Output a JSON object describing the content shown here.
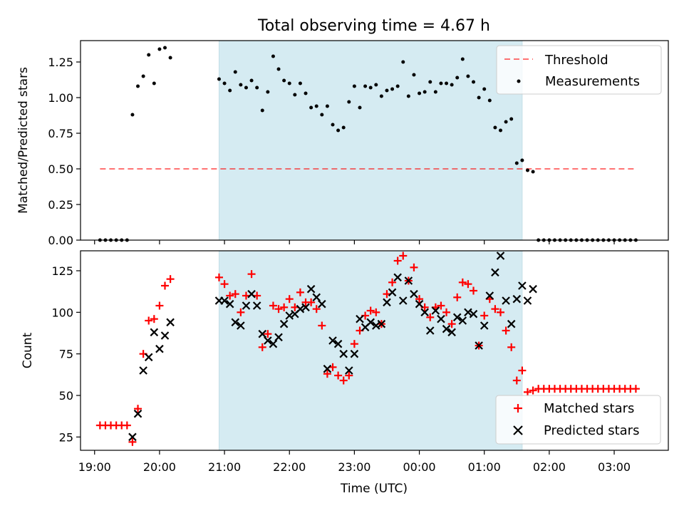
{
  "figure": {
    "title": "Total observing time = 4.67 h"
  },
  "colors": {
    "band": "#add8e6",
    "threshold": "#ff0000",
    "measurements": "#000000",
    "matched": "#ff0000",
    "predicted": "#000000"
  },
  "chart_data": [
    {
      "type": "scatter",
      "panel": "top",
      "title": "Total observing time = 4.67 h",
      "xlabel": "",
      "ylabel": "Matched/Predicted stars",
      "x_axis": "time (UTC)",
      "xlim": [
        "18:47",
        "03:50"
      ],
      "ylim": [
        0,
        1.4
      ],
      "yticks": [
        "0.00",
        "0.25",
        "0.50",
        "0.75",
        "1.00",
        "1.25"
      ],
      "legend_position": "top-right",
      "observing_window": [
        "20:55",
        "01:35"
      ],
      "series": [
        {
          "name": "Threshold",
          "style": "dashed-line",
          "points": [
            [
              "19:05",
              0.5
            ],
            [
              "03:20",
              0.5
            ]
          ]
        },
        {
          "name": "Measurements",
          "style": "dots",
          "points": [
            [
              "19:05",
              0.0
            ],
            [
              "19:10",
              0.0
            ],
            [
              "19:15",
              0.0
            ],
            [
              "19:20",
              0.0
            ],
            [
              "19:25",
              0.0
            ],
            [
              "19:30",
              0.0
            ],
            [
              "19:35",
              0.88
            ],
            [
              "19:40",
              1.08
            ],
            [
              "19:45",
              1.15
            ],
            [
              "19:50",
              1.3
            ],
            [
              "19:55",
              1.1
            ],
            [
              "20:00",
              1.34
            ],
            [
              "20:05",
              1.35
            ],
            [
              "20:10",
              1.28
            ],
            [
              "20:55",
              1.13
            ],
            [
              "21:00",
              1.1
            ],
            [
              "21:05",
              1.05
            ],
            [
              "21:10",
              1.18
            ],
            [
              "21:15",
              1.09
            ],
            [
              "21:20",
              1.07
            ],
            [
              "21:25",
              1.12
            ],
            [
              "21:30",
              1.07
            ],
            [
              "21:35",
              0.91
            ],
            [
              "21:40",
              1.04
            ],
            [
              "21:45",
              1.29
            ],
            [
              "21:50",
              1.2
            ],
            [
              "21:55",
              1.12
            ],
            [
              "22:00",
              1.1
            ],
            [
              "22:05",
              1.02
            ],
            [
              "22:10",
              1.1
            ],
            [
              "22:15",
              1.03
            ],
            [
              "22:20",
              0.93
            ],
            [
              "22:25",
              0.94
            ],
            [
              "22:30",
              0.88
            ],
            [
              "22:35",
              0.94
            ],
            [
              "22:40",
              0.81
            ],
            [
              "22:45",
              0.77
            ],
            [
              "22:50",
              0.79
            ],
            [
              "22:55",
              0.97
            ],
            [
              "23:00",
              1.08
            ],
            [
              "23:05",
              0.93
            ],
            [
              "23:10",
              1.08
            ],
            [
              "23:15",
              1.07
            ],
            [
              "23:20",
              1.09
            ],
            [
              "23:25",
              1.01
            ],
            [
              "23:30",
              1.05
            ],
            [
              "23:35",
              1.06
            ],
            [
              "23:40",
              1.08
            ],
            [
              "23:45",
              1.25
            ],
            [
              "23:50",
              1.01
            ],
            [
              "23:55",
              1.16
            ],
            [
              "00:00",
              1.03
            ],
            [
              "00:05",
              1.04
            ],
            [
              "00:10",
              1.11
            ],
            [
              "00:15",
              1.04
            ],
            [
              "00:20",
              1.1
            ],
            [
              "00:25",
              1.1
            ],
            [
              "00:30",
              1.09
            ],
            [
              "00:35",
              1.14
            ],
            [
              "00:40",
              1.27
            ],
            [
              "00:45",
              1.15
            ],
            [
              "00:50",
              1.11
            ],
            [
              "00:55",
              1.0
            ],
            [
              "01:00",
              1.06
            ],
            [
              "01:05",
              0.98
            ],
            [
              "01:10",
              0.79
            ],
            [
              "01:15",
              0.77
            ],
            [
              "01:20",
              0.83
            ],
            [
              "01:25",
              0.85
            ],
            [
              "01:30",
              0.54
            ],
            [
              "01:35",
              0.56
            ],
            [
              "01:40",
              0.49
            ],
            [
              "01:45",
              0.48
            ],
            [
              "01:50",
              0.0
            ],
            [
              "01:55",
              0.0
            ],
            [
              "02:00",
              0.0
            ],
            [
              "02:05",
              0.0
            ],
            [
              "02:10",
              0.0
            ],
            [
              "02:15",
              0.0
            ],
            [
              "02:20",
              0.0
            ],
            [
              "02:25",
              0.0
            ],
            [
              "02:30",
              0.0
            ],
            [
              "02:35",
              0.0
            ],
            [
              "02:40",
              0.0
            ],
            [
              "02:45",
              0.0
            ],
            [
              "02:50",
              0.0
            ],
            [
              "02:55",
              0.0
            ],
            [
              "03:00",
              0.0
            ],
            [
              "03:05",
              0.0
            ],
            [
              "03:10",
              0.0
            ],
            [
              "03:15",
              0.0
            ],
            [
              "03:20",
              0.0
            ]
          ]
        }
      ]
    },
    {
      "type": "scatter",
      "panel": "bottom",
      "xlabel": "Time (UTC)",
      "ylabel": "Count",
      "xlim": [
        "18:47",
        "03:50"
      ],
      "ylim": [
        17,
        137
      ],
      "xticks": [
        "19:00",
        "20:00",
        "21:00",
        "22:00",
        "23:00",
        "00:00",
        "01:00",
        "02:00",
        "03:00"
      ],
      "yticks": [
        "25",
        "50",
        "75",
        "100",
        "125"
      ],
      "legend_position": "bottom-right",
      "observing_window": [
        "20:55",
        "01:35"
      ],
      "series": [
        {
          "name": "Matched stars",
          "marker": "+",
          "points": [
            [
              "19:05",
              32
            ],
            [
              "19:10",
              32
            ],
            [
              "19:15",
              32
            ],
            [
              "19:20",
              32
            ],
            [
              "19:25",
              32
            ],
            [
              "19:30",
              32
            ],
            [
              "19:35",
              22
            ],
            [
              "19:40",
              42
            ],
            [
              "19:45",
              75
            ],
            [
              "19:50",
              95
            ],
            [
              "19:55",
              96
            ],
            [
              "20:00",
              104
            ],
            [
              "20:05",
              116
            ],
            [
              "20:10",
              120
            ],
            [
              "20:55",
              121
            ],
            [
              "21:00",
              117
            ],
            [
              "21:05",
              110
            ],
            [
              "21:10",
              111
            ],
            [
              "21:15",
              100
            ],
            [
              "21:20",
              110
            ],
            [
              "21:25",
              123
            ],
            [
              "21:30",
              110
            ],
            [
              "21:35",
              79
            ],
            [
              "21:40",
              87
            ],
            [
              "21:45",
              104
            ],
            [
              "21:50",
              102
            ],
            [
              "21:55",
              103
            ],
            [
              "22:00",
              108
            ],
            [
              "22:05",
              103
            ],
            [
              "22:10",
              112
            ],
            [
              "22:15",
              106
            ],
            [
              "22:20",
              106
            ],
            [
              "22:25",
              102
            ],
            [
              "22:30",
              92
            ],
            [
              "22:35",
              63
            ],
            [
              "22:40",
              67
            ],
            [
              "22:45",
              62
            ],
            [
              "22:50",
              59
            ],
            [
              "22:55",
              62
            ],
            [
              "23:00",
              81
            ],
            [
              "23:05",
              89
            ],
            [
              "23:10",
              98
            ],
            [
              "23:15",
              101
            ],
            [
              "23:20",
              100
            ],
            [
              "23:25",
              93
            ],
            [
              "23:30",
              111
            ],
            [
              "23:35",
              118
            ],
            [
              "23:40",
              131
            ],
            [
              "23:45",
              134
            ],
            [
              "23:50",
              119
            ],
            [
              "23:55",
              127
            ],
            [
              "00:00",
              108
            ],
            [
              "00:05",
              103
            ],
            [
              "00:10",
              97
            ],
            [
              "00:15",
              103
            ],
            [
              "00:20",
              104
            ],
            [
              "00:25",
              100
            ],
            [
              "00:30",
              93
            ],
            [
              "00:35",
              109
            ],
            [
              "00:40",
              118
            ],
            [
              "00:45",
              117
            ],
            [
              "00:50",
              113
            ],
            [
              "00:55",
              80
            ],
            [
              "01:00",
              98
            ],
            [
              "01:05",
              108
            ],
            [
              "01:10",
              102
            ],
            [
              "01:15",
              100
            ],
            [
              "01:20",
              89
            ],
            [
              "01:25",
              79
            ],
            [
              "01:30",
              59
            ],
            [
              "01:35",
              65
            ],
            [
              "01:40",
              52
            ],
            [
              "01:45",
              53
            ],
            [
              "01:50",
              54
            ],
            [
              "01:55",
              54
            ],
            [
              "02:00",
              54
            ],
            [
              "02:05",
              54
            ],
            [
              "02:10",
              54
            ],
            [
              "02:15",
              54
            ],
            [
              "02:20",
              54
            ],
            [
              "02:25",
              54
            ],
            [
              "02:30",
              54
            ],
            [
              "02:35",
              54
            ],
            [
              "02:40",
              54
            ],
            [
              "02:45",
              54
            ],
            [
              "02:50",
              54
            ],
            [
              "02:55",
              54
            ],
            [
              "03:00",
              54
            ],
            [
              "03:05",
              54
            ],
            [
              "03:10",
              54
            ],
            [
              "03:15",
              54
            ],
            [
              "03:20",
              54
            ]
          ]
        },
        {
          "name": "Predicted stars",
          "marker": "x",
          "points": [
            [
              "19:35",
              25
            ],
            [
              "19:40",
              39
            ],
            [
              "19:45",
              65
            ],
            [
              "19:50",
              73
            ],
            [
              "19:55",
              88
            ],
            [
              "20:00",
              78
            ],
            [
              "20:05",
              86
            ],
            [
              "20:10",
              94
            ],
            [
              "20:55",
              107
            ],
            [
              "21:00",
              107
            ],
            [
              "21:05",
              105
            ],
            [
              "21:10",
              94
            ],
            [
              "21:15",
              92
            ],
            [
              "21:20",
              104
            ],
            [
              "21:25",
              111
            ],
            [
              "21:30",
              104
            ],
            [
              "21:35",
              87
            ],
            [
              "21:40",
              83
            ],
            [
              "21:45",
              81
            ],
            [
              "21:50",
              85
            ],
            [
              "21:55",
              93
            ],
            [
              "22:00",
              98
            ],
            [
              "22:05",
              99
            ],
            [
              "22:10",
              102
            ],
            [
              "22:15",
              103
            ],
            [
              "22:20",
              114
            ],
            [
              "22:25",
              109
            ],
            [
              "22:30",
              105
            ],
            [
              "22:35",
              66
            ],
            [
              "22:40",
              83
            ],
            [
              "22:45",
              81
            ],
            [
              "22:50",
              75
            ],
            [
              "22:55",
              65
            ],
            [
              "23:00",
              75
            ],
            [
              "23:05",
              96
            ],
            [
              "23:10",
              91
            ],
            [
              "23:15",
              94
            ],
            [
              "23:20",
              92
            ],
            [
              "23:25",
              93
            ],
            [
              "23:30",
              106
            ],
            [
              "23:35",
              112
            ],
            [
              "23:40",
              121
            ],
            [
              "23:45",
              107
            ],
            [
              "23:50",
              119
            ],
            [
              "23:55",
              111
            ],
            [
              "00:00",
              105
            ],
            [
              "00:05",
              100
            ],
            [
              "00:10",
              89
            ],
            [
              "00:15",
              101
            ],
            [
              "00:20",
              96
            ],
            [
              "00:25",
              90
            ],
            [
              "00:30",
              88
            ],
            [
              "00:35",
              97
            ],
            [
              "00:40",
              95
            ],
            [
              "00:45",
              100
            ],
            [
              "00:50",
              99
            ],
            [
              "00:55",
              80
            ],
            [
              "01:00",
              92
            ],
            [
              "01:05",
              110
            ],
            [
              "01:10",
              124
            ],
            [
              "01:15",
              134
            ],
            [
              "01:20",
              107
            ],
            [
              "01:25",
              93
            ],
            [
              "01:30",
              108
            ],
            [
              "01:35",
              116
            ],
            [
              "01:40",
              107
            ],
            [
              "01:45",
              114
            ]
          ]
        }
      ]
    }
  ]
}
